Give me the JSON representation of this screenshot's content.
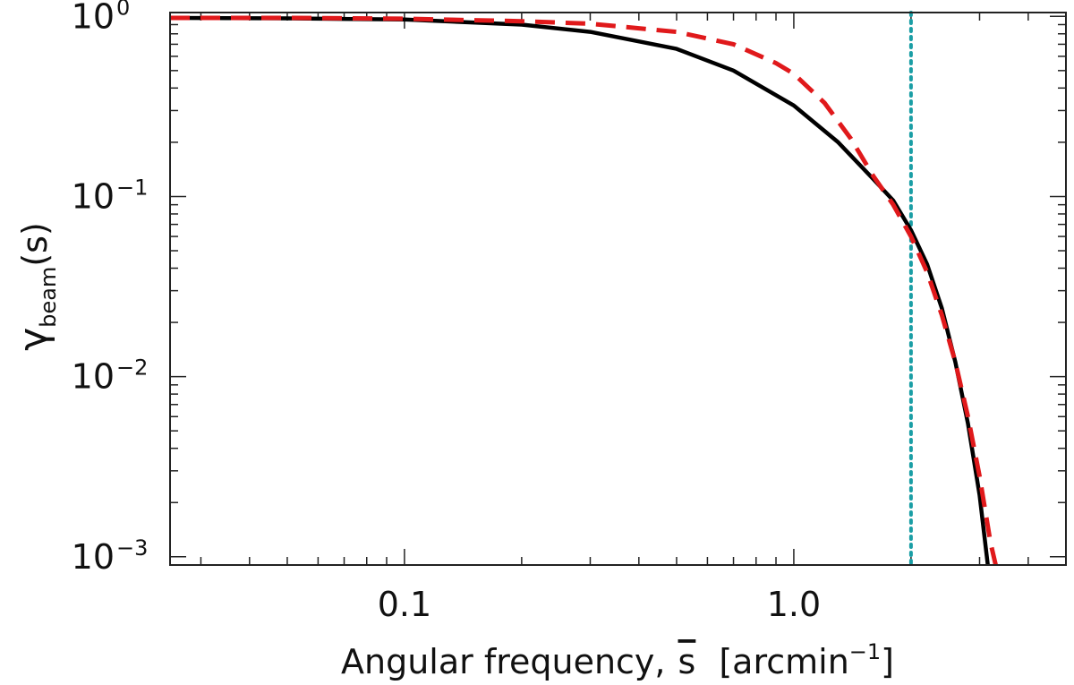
{
  "chart_data": {
    "type": "line",
    "xscale": "log",
    "yscale": "log",
    "xlim": [
      0.025,
      5.0
    ],
    "ylim": [
      0.0009,
      1.05
    ],
    "xlabel": {
      "text": "Angular frequency,",
      "var": "s",
      "units": "[arcmin",
      "units_exp": "−1",
      "units_close": "]"
    },
    "ylabel": {
      "symbol": "γ",
      "subscript": "beam",
      "arg": "(s)"
    },
    "x_ticks": [
      {
        "value": 0.1,
        "label": "0.1"
      },
      {
        "value": 1.0,
        "label": "1.0"
      }
    ],
    "y_ticks": [
      {
        "value": 1,
        "base": "10",
        "exp": "0"
      },
      {
        "value": 0.1,
        "base": "10",
        "exp": "−1"
      },
      {
        "value": 0.01,
        "base": "10",
        "exp": "−2"
      },
      {
        "value": 0.001,
        "base": "10",
        "exp": "−3"
      }
    ],
    "series": [
      {
        "style": "solid",
        "color": "#000000",
        "x": [
          0.025,
          0.05,
          0.1,
          0.2,
          0.3,
          0.5,
          0.7,
          1.0,
          1.3,
          1.6,
          1.8,
          2.0,
          2.2,
          2.4,
          2.6,
          2.8,
          3.0,
          3.15
        ],
        "y": [
          0.98,
          0.975,
          0.96,
          0.9,
          0.82,
          0.66,
          0.5,
          0.32,
          0.2,
          0.125,
          0.095,
          0.065,
          0.042,
          0.024,
          0.012,
          0.0055,
          0.0022,
          0.0009
        ]
      },
      {
        "style": "dashed",
        "color": "#e0191b",
        "x": [
          0.025,
          0.05,
          0.1,
          0.2,
          0.3,
          0.5,
          0.7,
          0.9,
          1.0,
          1.2,
          1.4,
          1.6,
          1.8,
          2.0,
          2.2,
          2.4,
          2.6,
          2.8,
          3.0,
          3.2,
          3.3
        ],
        "y": [
          0.98,
          0.98,
          0.97,
          0.94,
          0.91,
          0.82,
          0.7,
          0.55,
          0.48,
          0.33,
          0.21,
          0.13,
          0.09,
          0.06,
          0.038,
          0.022,
          0.012,
          0.006,
          0.0028,
          0.0012,
          0.0009
        ]
      }
    ],
    "vline": {
      "x": 2.0,
      "style": "dotted",
      "color": "#1a9ea5"
    },
    "grid": false,
    "legend": "none"
  }
}
